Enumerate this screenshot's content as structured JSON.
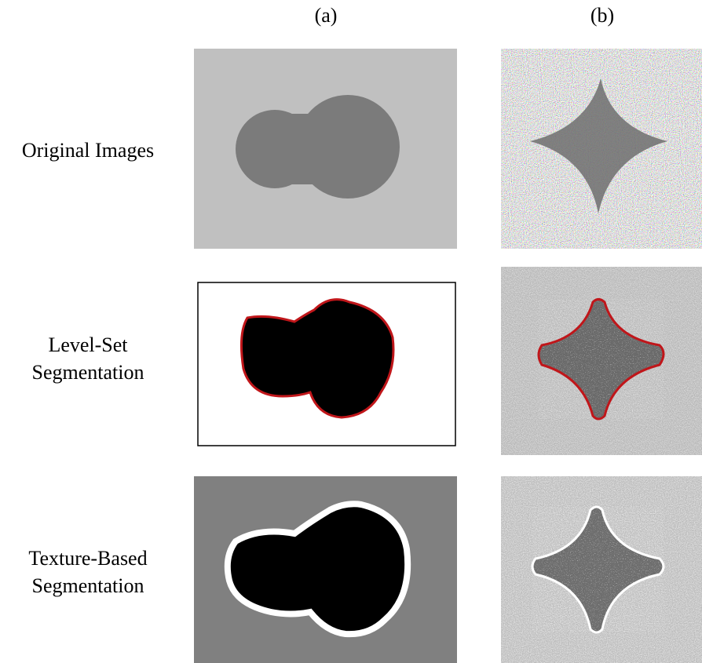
{
  "columns": [
    "(a)",
    "(b)"
  ],
  "rows": [
    {
      "label": [
        "Original Images"
      ]
    },
    {
      "label": [
        "Level-Set",
        "Segmentation"
      ]
    },
    {
      "label": [
        "Texture-Based",
        "Segmentation"
      ]
    }
  ]
}
